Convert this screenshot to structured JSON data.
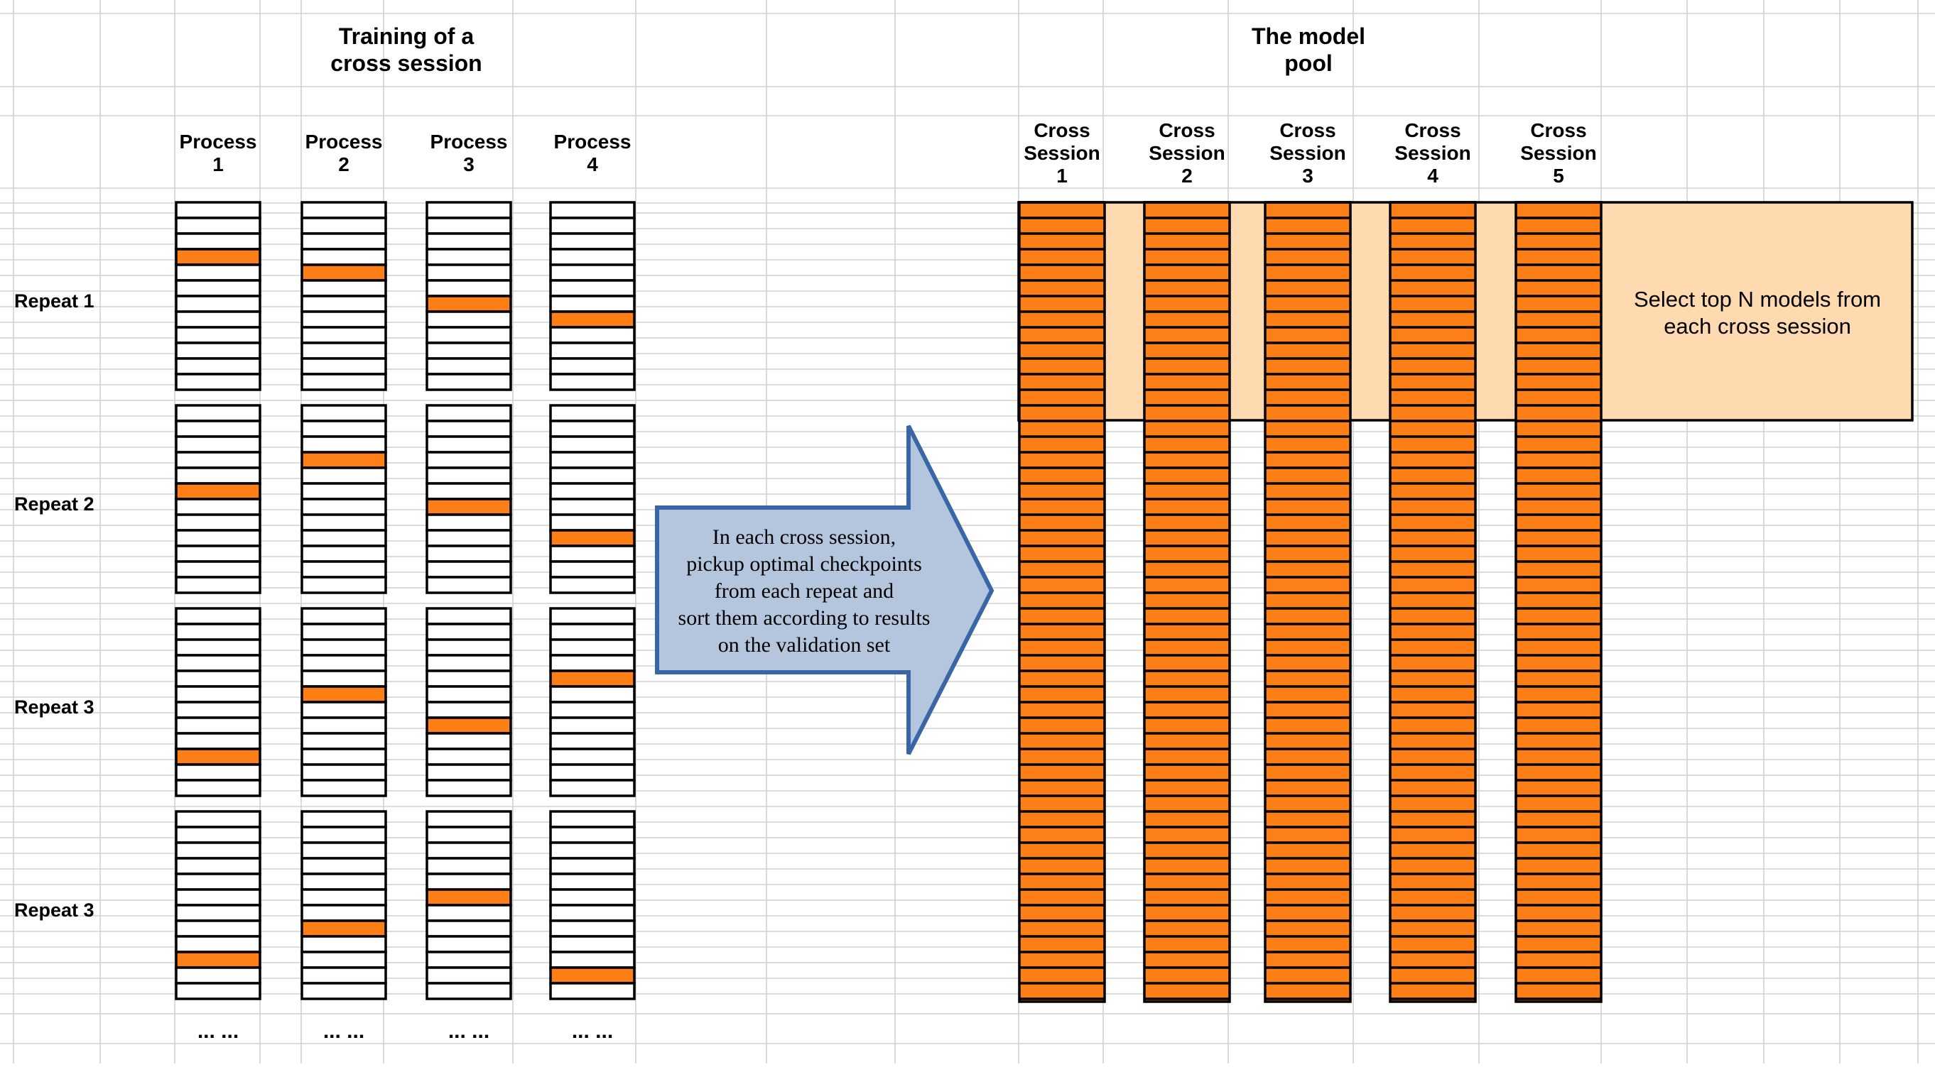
{
  "left_title": [
    "Training of a",
    "cross session"
  ],
  "right_title": [
    "The model",
    "pool"
  ],
  "processes": [
    {
      "label": [
        "Process",
        "1"
      ]
    },
    {
      "label": [
        "Process",
        "2"
      ]
    },
    {
      "label": [
        "Process",
        "3"
      ]
    },
    {
      "label": [
        "Process",
        "4"
      ]
    }
  ],
  "repeats": [
    {
      "label": "Repeat 1",
      "highlight_rows": [
        3,
        4,
        6,
        7
      ]
    },
    {
      "label": "Repeat 2",
      "highlight_rows": [
        5,
        3,
        6,
        8
      ]
    },
    {
      "label": "Repeat 3",
      "highlight_rows": [
        9,
        5,
        7,
        4
      ]
    },
    {
      "label": "Repeat 3",
      "highlight_rows": [
        9,
        7,
        5,
        10
      ]
    }
  ],
  "rows_per_stack": 12,
  "ellipsis": "... ...",
  "arrow_text": [
    "In each cross session,",
    "pickup optimal checkpoints",
    "from each repeat and",
    "sort them according to results",
    "on the validation set"
  ],
  "sessions": [
    {
      "label": [
        "Cross",
        "Session",
        "1"
      ]
    },
    {
      "label": [
        "Cross",
        "Session",
        "2"
      ]
    },
    {
      "label": [
        "Cross",
        "Session",
        "3"
      ]
    },
    {
      "label": [
        "Cross",
        "Session",
        "4"
      ]
    },
    {
      "label": [
        "Cross",
        "Session",
        "5"
      ]
    }
  ],
  "pool_rows": 51,
  "select_text": [
    "Select top N models from",
    "each cross session"
  ],
  "colors": {
    "orange": "#ff7f17",
    "peach": "#ffdab0",
    "arrow_fill": "#b3c6de",
    "arrow_stroke": "#3a66a6",
    "grid": "#d0d0d0",
    "ink": "#000000"
  }
}
